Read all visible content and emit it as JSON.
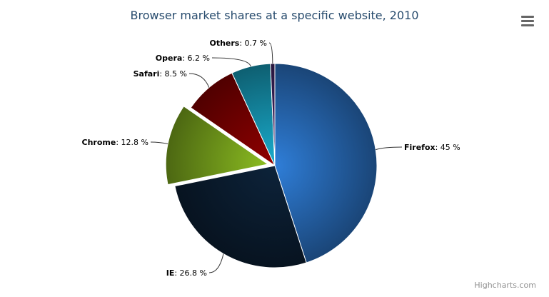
{
  "chart_data": {
    "type": "pie",
    "title": "Browser market shares at a specific website, 2010",
    "categories": [
      "Firefox",
      "IE",
      "Chrome",
      "Safari",
      "Opera",
      "Others"
    ],
    "values": [
      45.0,
      26.8,
      12.8,
      8.5,
      6.2,
      0.7
    ],
    "unit": "%",
    "sliced": [
      "Chrome"
    ],
    "colors": [
      "#2f7ed8",
      "#0d233a",
      "#8bbc21",
      "#910000",
      "#1aadce",
      "#492970"
    ],
    "legend": "none"
  },
  "credits": "Highcharts.com",
  "menu_icon": "hamburger-menu-icon"
}
